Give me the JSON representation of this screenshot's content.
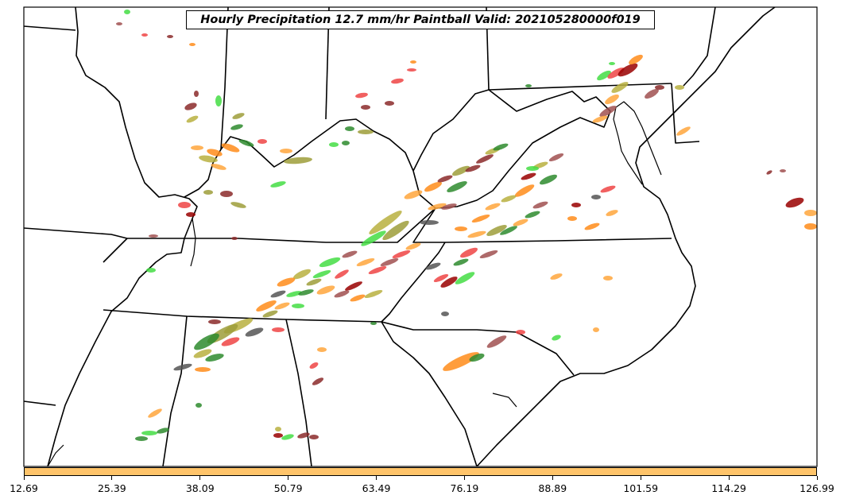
{
  "title": "Hourly Precipitation 12.7 mm/hr Paintball Valid: 202105280000f019",
  "colorbar": {
    "color": "#ffc46a",
    "ticks": [
      "12.69",
      "25.39",
      "38.09",
      "50.79",
      "63.49",
      "76.19",
      "88.89",
      "101.59",
      "114.29",
      "126.99"
    ]
  },
  "member_colors": [
    "#2e8b2e",
    "#44dd44",
    "#9e9e3a",
    "#b8b040",
    "#8b2a2a",
    "#a05050",
    "#ee4444",
    "#ff8c1a",
    "#ffa63c",
    "#555555",
    "#990000"
  ]
}
